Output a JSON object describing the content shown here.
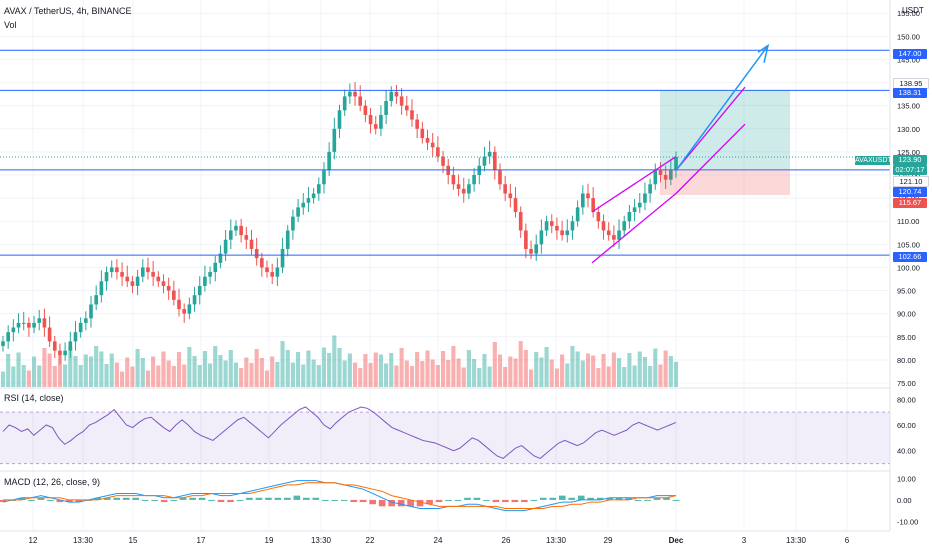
{
  "header": {
    "title": "AVAX / TetherUS, 4h, BINANCE",
    "vol_label": "Vol",
    "currency": "USDT"
  },
  "rsi_title": "RSI (14, close)",
  "macd_title": "MACD (12, 26, close, 9)",
  "tags": {
    "symbol": "AVAXUSDT",
    "price": "123.90",
    "countdown": "02:07:17",
    "level_147": "147.00",
    "level_138_95": "138.95",
    "level_138_31": "138.31",
    "level_121_10": "121.10",
    "level_120_74": "120.74",
    "level_115_67": "115.67",
    "level_102_66": "102.66"
  },
  "colors": {
    "up": "#26a69a",
    "down": "#ef5350",
    "hline": "#2962ff",
    "channel": "#d500f9",
    "arrow": "#2196f3",
    "rsi": "#7e57c2",
    "macd": "#2196f3",
    "signal": "#ff6d00"
  },
  "chart_data": [
    {
      "type": "candlestick",
      "title": "AVAX / TetherUS, 4h, BINANCE",
      "y_ticks": [
        "75.00",
        "80.00",
        "85.00",
        "90.00",
        "95.00",
        "100.00",
        "105.00",
        "110.00",
        "115.00",
        "120.00",
        "125.00",
        "130.00",
        "135.00",
        "140.00",
        "145.00",
        "150.00",
        "155.00"
      ],
      "x_ticks": [
        "12",
        "13:30",
        "15",
        "17",
        "19",
        "13:30",
        "22",
        "24",
        "26",
        "13:30",
        "29",
        "Dec",
        "3",
        "13:30",
        "6"
      ],
      "ylim": [
        75,
        157
      ],
      "horizontal_levels": [
        147.0,
        138.31,
        121.1,
        102.66
      ],
      "closes": [
        84,
        86,
        87,
        88,
        88,
        87,
        88,
        89,
        87,
        84,
        82,
        81,
        82,
        84,
        86,
        88,
        89,
        92,
        94,
        97,
        99,
        100,
        99,
        98,
        97,
        96,
        98,
        100,
        99,
        98,
        97,
        96,
        95,
        93,
        91,
        90,
        92,
        94,
        96,
        98,
        99,
        101,
        103,
        106,
        108,
        109,
        107,
        106,
        104,
        102,
        100,
        99,
        98,
        100,
        104,
        108,
        111,
        113,
        114,
        115,
        116,
        118,
        121,
        125,
        130,
        134,
        137,
        138,
        137,
        135,
        133,
        131,
        130,
        133,
        136,
        138,
        137,
        135,
        134,
        132,
        130,
        128,
        127,
        126,
        124,
        122,
        120,
        118,
        117,
        116,
        118,
        120,
        122,
        124,
        125,
        121,
        118,
        116,
        115,
        112,
        108,
        104,
        103,
        105,
        108,
        110,
        109,
        108,
        107,
        108,
        110,
        113,
        116,
        115,
        112,
        110,
        108,
        107,
        106,
        108,
        110,
        112,
        113,
        114,
        116,
        118,
        121,
        120,
        119,
        121,
        123.9
      ],
      "volume_note": "per-candle volume bars, relative"
    },
    {
      "type": "line",
      "title": "RSI (14, close)",
      "y_ticks": [
        "40.00",
        "60.00",
        "80.00"
      ],
      "ylim": [
        25,
        88
      ],
      "band": [
        30,
        70
      ],
      "values": [
        55,
        60,
        58,
        55,
        57,
        52,
        56,
        60,
        58,
        50,
        45,
        48,
        52,
        55,
        60,
        62,
        65,
        68,
        72,
        66,
        60,
        58,
        62,
        65,
        66,
        62,
        58,
        55,
        60,
        64,
        60,
        55,
        52,
        50,
        48,
        52,
        56,
        60,
        64,
        66,
        62,
        58,
        54,
        50,
        55,
        60,
        64,
        68,
        72,
        74,
        70,
        66,
        60,
        57,
        62,
        66,
        70,
        72,
        74,
        73,
        70,
        66,
        62,
        58,
        56,
        54,
        52,
        50,
        48,
        47,
        46,
        44,
        42,
        40,
        42,
        46,
        50,
        48,
        44,
        40,
        36,
        34,
        38,
        42,
        44,
        40,
        36,
        34,
        38,
        42,
        46,
        48,
        46,
        44,
        46,
        50,
        54,
        56,
        54,
        52,
        54,
        56,
        60,
        62,
        60,
        58,
        56,
        58,
        60,
        62
      ]
    },
    {
      "type": "bar+line",
      "title": "MACD (12, 26, close, 9)",
      "y_ticks": [
        "10.00",
        "0.00",
        "-10.00"
      ],
      "ylim": [
        -14,
        13
      ],
      "macd": [
        -1,
        0,
        1,
        1,
        2,
        1,
        0,
        -1,
        -1,
        0,
        1,
        2,
        3,
        3,
        3,
        2,
        2,
        1,
        1,
        2,
        3,
        3,
        3,
        2,
        2,
        3,
        4,
        5,
        6,
        7,
        8,
        9,
        9,
        9,
        8,
        8,
        7,
        6,
        5,
        3,
        1,
        -1,
        -2,
        -3,
        -4,
        -4,
        -4,
        -3,
        -3,
        -2,
        -2,
        -3,
        -4,
        -5,
        -5,
        -5,
        -4,
        -3,
        -2,
        -1,
        -1,
        0,
        0,
        0,
        1,
        1,
        1,
        1,
        1,
        2,
        2,
        2
      ],
      "signal": [
        0,
        0,
        0,
        1,
        1,
        1,
        1,
        0,
        0,
        0,
        0,
        1,
        2,
        2,
        2,
        2,
        2,
        2,
        1,
        1,
        2,
        2,
        3,
        3,
        3,
        3,
        3,
        4,
        5,
        6,
        7,
        7,
        8,
        8,
        8,
        8,
        7,
        7,
        6,
        5,
        4,
        2,
        1,
        0,
        -1,
        -2,
        -3,
        -3,
        -3,
        -3,
        -3,
        -3,
        -3,
        -4,
        -4,
        -4,
        -4,
        -4,
        -3,
        -3,
        -2,
        -2,
        -1,
        -1,
        0,
        0,
        0,
        1,
        1,
        1,
        1,
        2
      ]
    }
  ]
}
